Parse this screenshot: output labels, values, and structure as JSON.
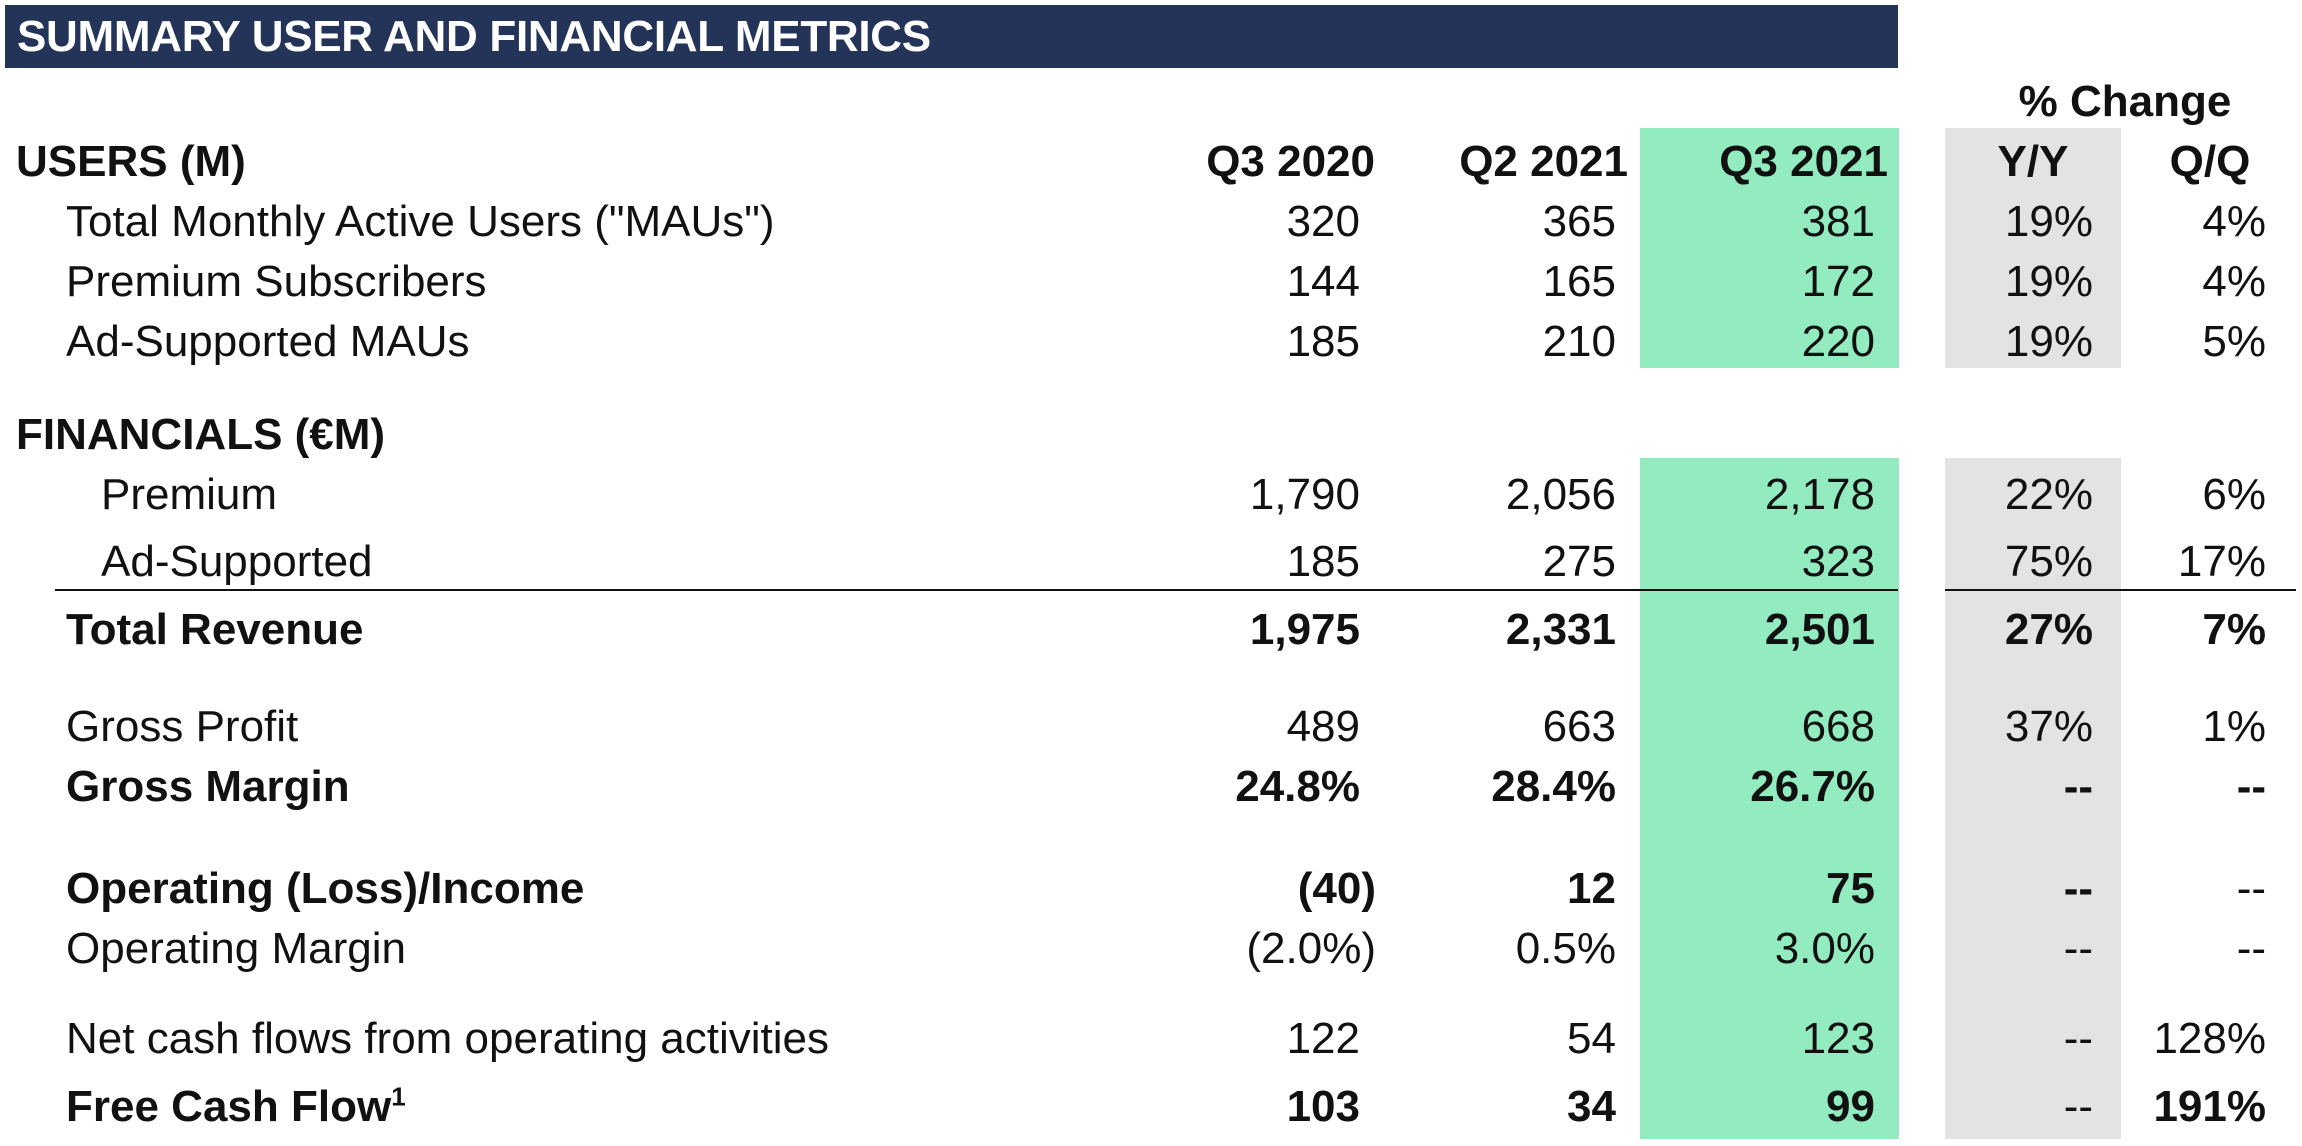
{
  "title": "SUMMARY USER AND FINANCIAL METRICS",
  "pct_change_header": "% Change",
  "columns": {
    "q3_2020": "Q3 2020",
    "q2_2021": "Q2 2021",
    "q3_2021": "Q3 2021",
    "yy": "Y/Y",
    "qq": "Q/Q"
  },
  "colors": {
    "title_bar": "#243459",
    "current_quarter_highlight": "#93ebc0",
    "yy_highlight": "#e3e3e3"
  },
  "users": {
    "header": "USERS (M)",
    "rows": [
      {
        "label": "Total Monthly Active Users (\"MAUs\")",
        "q3_2020": "320",
        "q2_2021": "365",
        "q3_2021": "381",
        "yy": "19%",
        "qq": "4%"
      },
      {
        "label": "Premium Subscribers",
        "q3_2020": "144",
        "q2_2021": "165",
        "q3_2021": "172",
        "yy": "19%",
        "qq": "4%"
      },
      {
        "label": "Ad-Supported MAUs",
        "q3_2020": "185",
        "q2_2021": "210",
        "q3_2021": "220",
        "yy": "19%",
        "qq": "5%"
      }
    ]
  },
  "financials": {
    "header": "FINANCIALS (€M)",
    "rows": [
      {
        "label": "Premium",
        "q3_2020": "1,790",
        "q2_2021": "2,056",
        "q3_2021": "2,178",
        "yy": "22%",
        "qq": "6%"
      },
      {
        "label": "Ad-Supported",
        "q3_2020": "185",
        "q2_2021": "275",
        "q3_2021": "323",
        "yy": "75%",
        "qq": "17%"
      },
      {
        "label": "Total Revenue",
        "q3_2020": "1,975",
        "q2_2021": "2,331",
        "q3_2021": "2,501",
        "yy": "27%",
        "qq": "7%"
      },
      {
        "label": "Gross Profit",
        "q3_2020": "489",
        "q2_2021": "663",
        "q3_2021": "668",
        "yy": "37%",
        "qq": "1%"
      },
      {
        "label": "Gross Margin",
        "q3_2020": "24.8%",
        "q2_2021": "28.4%",
        "q3_2021": "26.7%",
        "yy": "--",
        "qq": "--"
      },
      {
        "label": "Operating (Loss)/Income",
        "q3_2020": "(40)",
        "q2_2021": "12",
        "q3_2021": "75",
        "yy": "--",
        "qq": "--"
      },
      {
        "label": "Operating Margin",
        "q3_2020": "(2.0%)",
        "q2_2021": "0.5%",
        "q3_2021": "3.0%",
        "yy": "--",
        "qq": "--"
      },
      {
        "label": "Net cash flows from operating activities",
        "q3_2020": "122",
        "q2_2021": "54",
        "q3_2021": "123",
        "yy": "--",
        "qq": "128%"
      },
      {
        "label": "Free Cash Flow",
        "footnote": "1",
        "q3_2020": "103",
        "q2_2021": "34",
        "q3_2021": "99",
        "yy": "--",
        "qq": "191%"
      }
    ]
  }
}
